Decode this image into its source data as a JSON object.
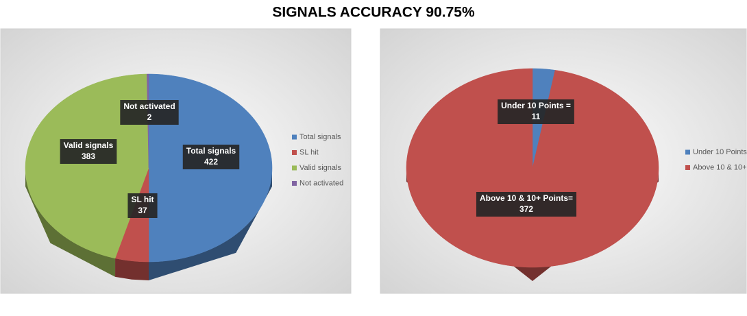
{
  "title": "SIGNALS  ACCURACY 90.75%",
  "chart_data": [
    {
      "type": "pie3d",
      "categories": [
        "Total signals",
        "SL hit",
        "Valid signals",
        "Not activated"
      ],
      "values": [
        422,
        37,
        383,
        2
      ],
      "colors": [
        "#4f81bd",
        "#c0504d",
        "#9bbb59",
        "#8064a2"
      ]
    },
    {
      "type": "pie3d",
      "categories": [
        "Under 10 Points",
        "Above 10 & 10+"
      ],
      "values": [
        11,
        372
      ],
      "data_labels": [
        "Under 10 Points =",
        "Above 10 & 10+ Points="
      ],
      "colors": [
        "#4f81bd",
        "#c0504d"
      ]
    }
  ]
}
